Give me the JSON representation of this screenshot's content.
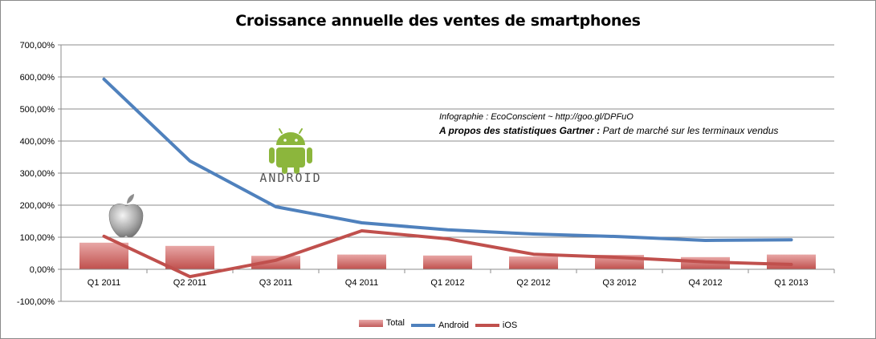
{
  "chart_data": {
    "type": "bar+line",
    "title": "Croissance annuelle des ventes de smartphones",
    "categories": [
      "Q1 2011",
      "Q2 2011",
      "Q3 2011",
      "Q4 2011",
      "Q1 2012",
      "Q2 2012",
      "Q3 2012",
      "Q4 2012",
      "Q1 2013"
    ],
    "y_ticks": [
      "-100,00%",
      "0,00%",
      "100,00%",
      "200,00%",
      "300,00%",
      "400,00%",
      "500,00%",
      "600,00%",
      "700,00%"
    ],
    "ylim": [
      -100,
      700
    ],
    "grid": "horizontal",
    "legend_position": "bottom",
    "series": [
      {
        "name": "Total",
        "kind": "bar",
        "color": "#c0504d",
        "values": [
          83,
          73,
          42,
          46,
          43,
          40,
          45,
          38,
          46
        ]
      },
      {
        "name": "Android",
        "kind": "line",
        "color": "#4f81bd",
        "values": [
          593,
          338,
          195,
          145,
          123,
          110,
          102,
          90,
          92
        ]
      },
      {
        "name": "iOS",
        "kind": "line",
        "color": "#c0504d",
        "values": [
          103,
          -23,
          28,
          120,
          95,
          47,
          37,
          23,
          15
        ]
      }
    ],
    "annotations": {
      "line1": "Infographie : EcoConscient  ~ http://goo.gl/DPFuO",
      "line2_bold": "A propos des statistiques Gartner :",
      "line2_rest": " Part de marché sur les terminaux vendus",
      "android_logo_text": "ANDROID"
    }
  }
}
